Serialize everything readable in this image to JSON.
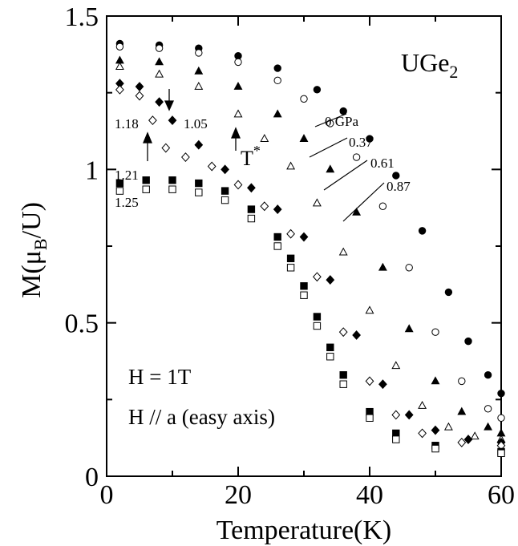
{
  "chart_data": {
    "type": "scatter",
    "title": "",
    "xlabel": "Temperature(K)",
    "ylabel_main": "M(μ",
    "ylabel_sub": "B",
    "ylabel_tail": "/U)",
    "xlim": [
      0,
      60
    ],
    "ylim": [
      0,
      1.5
    ],
    "x_ticks": [
      0,
      20,
      40,
      60
    ],
    "x_tick_labels": [
      "0",
      "20",
      "40",
      "60"
    ],
    "y_ticks": [
      0,
      0.5,
      1,
      1.5
    ],
    "y_tick_labels": [
      "0",
      "0.5",
      "1",
      "1.5"
    ],
    "grid": false,
    "material_main": "UGe",
    "material_sub": "2",
    "field_label": "H = 1T",
    "axis_label": "H // a (easy axis)",
    "tstar_main": "T",
    "tstar_sup": "*",
    "series": [
      {
        "pressure": "0 GPa",
        "marker": "circle",
        "fill": "black",
        "x": [
          2,
          8,
          14,
          20,
          26,
          32,
          36,
          40,
          44,
          48,
          52,
          55,
          58,
          60
        ],
        "y": [
          1.41,
          1.405,
          1.395,
          1.37,
          1.33,
          1.26,
          1.19,
          1.1,
          0.98,
          0.8,
          0.6,
          0.44,
          0.33,
          0.27
        ]
      },
      {
        "pressure": "0.37",
        "marker": "circle",
        "fill": "white",
        "x": [
          2,
          8,
          14,
          20,
          26,
          30,
          34,
          38,
          42,
          46,
          50,
          54,
          58,
          60
        ],
        "y": [
          1.4,
          1.395,
          1.38,
          1.35,
          1.29,
          1.23,
          1.15,
          1.04,
          0.88,
          0.68,
          0.47,
          0.31,
          0.22,
          0.19
        ]
      },
      {
        "pressure": "0.61",
        "marker": "triangle",
        "fill": "black",
        "x": [
          2,
          8,
          14,
          20,
          26,
          30,
          34,
          38,
          42,
          46,
          50,
          54,
          58,
          60
        ],
        "y": [
          1.355,
          1.35,
          1.32,
          1.27,
          1.18,
          1.1,
          1.0,
          0.86,
          0.68,
          0.48,
          0.31,
          0.21,
          0.16,
          0.14
        ]
      },
      {
        "pressure": "0.87",
        "marker": "triangle",
        "fill": "white",
        "x": [
          2,
          8,
          14,
          20,
          24,
          28,
          32,
          36,
          40,
          44,
          48,
          52,
          56,
          60
        ],
        "y": [
          1.335,
          1.31,
          1.27,
          1.18,
          1.1,
          1.01,
          0.89,
          0.73,
          0.54,
          0.36,
          0.23,
          0.16,
          0.13,
          0.12
        ]
      },
      {
        "pressure": "1.05",
        "marker": "diamond",
        "fill": "black",
        "x": [
          2,
          5,
          8,
          10,
          14,
          18,
          22,
          26,
          30,
          34,
          38,
          42,
          46,
          50,
          55,
          60
        ],
        "y": [
          1.28,
          1.27,
          1.22,
          1.16,
          1.08,
          1.0,
          0.94,
          0.87,
          0.78,
          0.64,
          0.46,
          0.3,
          0.2,
          0.15,
          0.12,
          0.11
        ]
      },
      {
        "pressure": "1.18",
        "marker": "diamond",
        "fill": "white",
        "x": [
          2,
          5,
          7,
          9,
          12,
          16,
          20,
          24,
          28,
          32,
          36,
          40,
          44,
          48,
          54,
          60
        ],
        "y": [
          1.26,
          1.24,
          1.16,
          1.07,
          1.04,
          1.01,
          0.95,
          0.88,
          0.79,
          0.65,
          0.47,
          0.31,
          0.2,
          0.14,
          0.11,
          0.1
        ]
      },
      {
        "pressure": "1.21",
        "marker": "square",
        "fill": "black",
        "x": [
          2,
          6,
          10,
          14,
          18,
          22,
          26,
          28,
          30,
          32,
          34,
          36,
          40,
          44,
          50,
          60
        ],
        "y": [
          0.955,
          0.965,
          0.965,
          0.955,
          0.93,
          0.87,
          0.78,
          0.71,
          0.62,
          0.52,
          0.42,
          0.33,
          0.21,
          0.14,
          0.1,
          0.08
        ]
      },
      {
        "pressure": "1.25",
        "marker": "square",
        "fill": "white",
        "x": [
          2,
          6,
          10,
          14,
          18,
          22,
          26,
          28,
          30,
          32,
          34,
          36,
          40,
          44,
          50,
          60
        ],
        "y": [
          0.93,
          0.935,
          0.935,
          0.925,
          0.9,
          0.84,
          0.75,
          0.68,
          0.59,
          0.49,
          0.39,
          0.3,
          0.19,
          0.12,
          0.09,
          0.075
        ]
      }
    ]
  }
}
